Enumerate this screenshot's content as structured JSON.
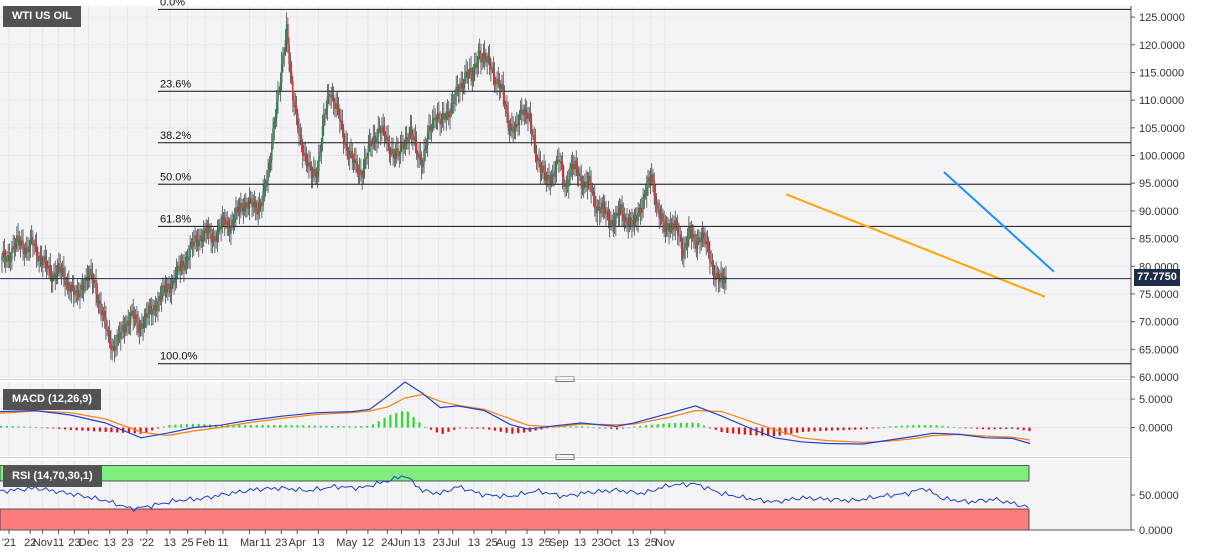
{
  "panels": {
    "main": {
      "label": "WTI US OIL",
      "last_price": "77.7750"
    },
    "macd": {
      "label": "MACD (12,26,9)"
    },
    "rsi": {
      "label": "RSI (14,70,30,1)"
    }
  },
  "colors": {
    "background": "#ffffff",
    "plot_bg": "#f4f4f6",
    "bull_candle": "#2e8b57",
    "bear_candle": "#d63a3a",
    "support_line": "#ffa500",
    "resistance_line": "#1e90ff",
    "macd_line": "#2040d0",
    "signal_line": "#ff7f0e",
    "hist_pos": "#33d633",
    "hist_neg": "#e01010",
    "rsi_line": "#2040d0",
    "rsi_overbought": "#7fee7f",
    "rsi_oversold": "#ff7c7c"
  },
  "chart_data": [
    {
      "type": "candlestick",
      "title": "WTI US OIL",
      "y_ticks": [
        "125.0000",
        "120.0000",
        "115.0000",
        "110.0000",
        "105.0000",
        "100.0000",
        "95.0000",
        "90.0000",
        "85.0000",
        "80.0000",
        "75.0000",
        "70.0000",
        "65.0000",
        "60.0000"
      ],
      "ylim": [
        60,
        127
      ],
      "x_ticks": [
        "'21",
        "22",
        "Nov",
        "11",
        "23",
        "Dec",
        "13",
        "23",
        "'22",
        "13",
        "25",
        "Feb",
        "11",
        "Mar",
        "11",
        "23",
        "Apr",
        "13",
        "May",
        "12",
        "24",
        "Jun",
        "13",
        "23",
        "Jul",
        "13",
        "25",
        "Aug",
        "13",
        "25",
        "Sep",
        "13",
        "23",
        "Oct",
        "13",
        "25",
        "Nov"
      ],
      "last_price": 77.775,
      "fibonacci_levels": [
        {
          "label": "0.0%",
          "value": 126.4
        },
        {
          "label": "23.6%",
          "value": 111.6
        },
        {
          "label": "38.2%",
          "value": 102.3
        },
        {
          "label": "50.0%",
          "value": 94.8
        },
        {
          "label": "61.8%",
          "value": 87.2
        },
        {
          "label": "100.0%",
          "value": 62.4
        }
      ],
      "close_path": [
        [
          0,
          81.0
        ],
        [
          5,
          82.0
        ],
        [
          10,
          83.5
        ],
        [
          15,
          84.5
        ],
        [
          20,
          83.0
        ],
        [
          25,
          84.0
        ],
        [
          30,
          82.0
        ],
        [
          35,
          80.0
        ],
        [
          40,
          78.5
        ],
        [
          45,
          79.5
        ],
        [
          50,
          78.0
        ],
        [
          55,
          76.5
        ],
        [
          60,
          74.0
        ],
        [
          65,
          77.0
        ],
        [
          70,
          78.0
        ],
        [
          75,
          77.0
        ],
        [
          80,
          72.0
        ],
        [
          85,
          68.0
        ],
        [
          90,
          65.5
        ],
        [
          95,
          67.0
        ],
        [
          100,
          70.0
        ],
        [
          105,
          71.0
        ],
        [
          110,
          69.0
        ],
        [
          115,
          70.5
        ],
        [
          120,
          71.5
        ],
        [
          125,
          73.5
        ],
        [
          130,
          75.0
        ],
        [
          135,
          76.5
        ],
        [
          140,
          78.0
        ],
        [
          145,
          80.0
        ],
        [
          150,
          82.0
        ],
        [
          155,
          84.0
        ],
        [
          160,
          85.5
        ],
        [
          165,
          86.0
        ],
        [
          170,
          85.0
        ],
        [
          175,
          86.5
        ],
        [
          180,
          88.0
        ],
        [
          185,
          87.5
        ],
        [
          190,
          89.5
        ],
        [
          195,
          91.5
        ],
        [
          200,
          91.0
        ],
        [
          205,
          90.5
        ],
        [
          210,
          92.0
        ],
        [
          215,
          96.0
        ],
        [
          220,
          107.0
        ],
        [
          225,
          113.0
        ],
        [
          230,
          123.5
        ],
        [
          235,
          110.0
        ],
        [
          240,
          104.0
        ],
        [
          245,
          100.0
        ],
        [
          250,
          96.0
        ],
        [
          255,
          98.0
        ],
        [
          260,
          106.0
        ],
        [
          265,
          112.0
        ],
        [
          270,
          109.0
        ],
        [
          275,
          104.0
        ],
        [
          280,
          101.0
        ],
        [
          285,
          98.0
        ],
        [
          290,
          97.0
        ],
        [
          295,
          100.0
        ],
        [
          300,
          103.0
        ],
        [
          305,
          105.0
        ],
        [
          310,
          103.0
        ],
        [
          315,
          101.0
        ],
        [
          320,
          99.5
        ],
        [
          325,
          103.0
        ],
        [
          330,
          104.0
        ],
        [
          335,
          101.0
        ],
        [
          340,
          99.0
        ],
        [
          345,
          104.0
        ],
        [
          350,
          108.0
        ],
        [
          355,
          105.5
        ],
        [
          360,
          108.0
        ],
        [
          365,
          110.0
        ],
        [
          370,
          112.0
        ],
        [
          375,
          115.5
        ],
        [
          380,
          113.5
        ],
        [
          385,
          119.0
        ],
        [
          390,
          117.0
        ],
        [
          395,
          116.5
        ],
        [
          400,
          113.0
        ],
        [
          405,
          111.0
        ],
        [
          410,
          105.5
        ],
        [
          415,
          104.0
        ],
        [
          420,
          109.0
        ],
        [
          425,
          107.0
        ],
        [
          430,
          102.0
        ],
        [
          435,
          98.0
        ],
        [
          440,
          95.0
        ],
        [
          445,
          97.0
        ],
        [
          450,
          99.0
        ],
        [
          455,
          94.5
        ],
        [
          460,
          98.0
        ],
        [
          465,
          97.0
        ],
        [
          470,
          95.0
        ],
        [
          475,
          94.5
        ],
        [
          480,
          91.0
        ],
        [
          485,
          90.0
        ],
        [
          490,
          89.0
        ],
        [
          495,
          88.0
        ],
        [
          500,
          90.0
        ],
        [
          505,
          88.5
        ],
        [
          510,
          87.0
        ],
        [
          515,
          90.5
        ],
        [
          520,
          93.0
        ],
        [
          525,
          96.5
        ],
        [
          530,
          90.0
        ],
        [
          535,
          86.5
        ],
        [
          540,
          88.0
        ],
        [
          545,
          86.5
        ],
        [
          550,
          83.0
        ],
        [
          555,
          86.0
        ],
        [
          560,
          84.0
        ],
        [
          565,
          86.0
        ],
        [
          570,
          83.0
        ],
        [
          575,
          79.5
        ],
        [
          580,
          77.0
        ],
        [
          585,
          77.775
        ]
      ],
      "support_trendline": {
        "from": [
          0.0,
          93.0
        ],
        "to": [
          1.0,
          74.5
        ],
        "label": ""
      },
      "resistance_trendline": {
        "from": [
          0.0,
          97.0
        ],
        "to": [
          1.0,
          79.0
        ],
        "label": ""
      }
    },
    {
      "type": "macd",
      "title": "MACD (12,26,9)",
      "y_ticks": [
        "5.0000",
        "0.0000"
      ],
      "ylim": [
        -5,
        8
      ],
      "macd_line": [
        [
          0,
          2.8
        ],
        [
          20,
          3.0
        ],
        [
          40,
          2.2
        ],
        [
          60,
          0.8
        ],
        [
          80,
          -1.8
        ],
        [
          95,
          -1.0
        ],
        [
          110,
          0.0
        ],
        [
          125,
          0.4
        ],
        [
          140,
          1.2
        ],
        [
          160,
          2.0
        ],
        [
          180,
          2.6
        ],
        [
          200,
          2.8
        ],
        [
          210,
          3.2
        ],
        [
          220,
          5.5
        ],
        [
          230,
          8.0
        ],
        [
          240,
          6.0
        ],
        [
          250,
          3.5
        ],
        [
          260,
          3.8
        ],
        [
          275,
          3.0
        ],
        [
          290,
          0.5
        ],
        [
          300,
          -0.3
        ],
        [
          315,
          0.3
        ],
        [
          330,
          0.8
        ],
        [
          350,
          0.2
        ],
        [
          360,
          0.8
        ],
        [
          380,
          2.5
        ],
        [
          395,
          3.8
        ],
        [
          410,
          2.0
        ],
        [
          425,
          0.0
        ],
        [
          440,
          -1.8
        ],
        [
          455,
          -2.5
        ],
        [
          470,
          -2.8
        ],
        [
          490,
          -2.9
        ],
        [
          505,
          -2.2
        ],
        [
          520,
          -1.5
        ],
        [
          530,
          -1.0
        ],
        [
          545,
          -1.2
        ],
        [
          560,
          -1.8
        ],
        [
          575,
          -1.9
        ],
        [
          585,
          -2.8
        ]
      ],
      "signal_line": [
        [
          0,
          2.5
        ],
        [
          20,
          2.9
        ],
        [
          40,
          2.6
        ],
        [
          60,
          1.5
        ],
        [
          80,
          -0.8
        ],
        [
          95,
          -1.4
        ],
        [
          110,
          -0.6
        ],
        [
          125,
          0.0
        ],
        [
          140,
          0.8
        ],
        [
          160,
          1.6
        ],
        [
          180,
          2.3
        ],
        [
          200,
          2.6
        ],
        [
          210,
          2.9
        ],
        [
          220,
          3.6
        ],
        [
          230,
          5.2
        ],
        [
          240,
          5.8
        ],
        [
          250,
          4.6
        ],
        [
          260,
          3.9
        ],
        [
          275,
          3.2
        ],
        [
          290,
          1.5
        ],
        [
          300,
          0.4
        ],
        [
          315,
          0.1
        ],
        [
          330,
          0.6
        ],
        [
          350,
          0.5
        ],
        [
          360,
          0.6
        ],
        [
          380,
          1.8
        ],
        [
          395,
          3.0
        ],
        [
          410,
          2.8
        ],
        [
          425,
          1.2
        ],
        [
          440,
          -0.4
        ],
        [
          455,
          -1.8
        ],
        [
          470,
          -2.3
        ],
        [
          490,
          -2.6
        ],
        [
          505,
          -2.4
        ],
        [
          520,
          -1.9
        ],
        [
          530,
          -1.4
        ],
        [
          545,
          -1.2
        ],
        [
          560,
          -1.5
        ],
        [
          575,
          -1.7
        ],
        [
          585,
          -2.2
        ]
      ]
    },
    {
      "type": "line",
      "title": "RSI (14,70,30,1)",
      "y_ticks": [
        "50.0000",
        "0.0000"
      ],
      "ylim": [
        0,
        100
      ],
      "overbought": 70,
      "oversold": 30,
      "rsi": [
        [
          0,
          55
        ],
        [
          20,
          60
        ],
        [
          40,
          52
        ],
        [
          60,
          42
        ],
        [
          75,
          30
        ],
        [
          85,
          34
        ],
        [
          100,
          42
        ],
        [
          115,
          45
        ],
        [
          130,
          52
        ],
        [
          145,
          58
        ],
        [
          160,
          60
        ],
        [
          175,
          56
        ],
        [
          190,
          62
        ],
        [
          205,
          60
        ],
        [
          220,
          70
        ],
        [
          230,
          78
        ],
        [
          240,
          56
        ],
        [
          250,
          52
        ],
        [
          260,
          62
        ],
        [
          275,
          50
        ],
        [
          290,
          48
        ],
        [
          305,
          56
        ],
        [
          320,
          48
        ],
        [
          335,
          54
        ],
        [
          350,
          57
        ],
        [
          365,
          52
        ],
        [
          380,
          64
        ],
        [
          395,
          66
        ],
        [
          410,
          52
        ],
        [
          425,
          45
        ],
        [
          440,
          40
        ],
        [
          455,
          46
        ],
        [
          470,
          44
        ],
        [
          485,
          42
        ],
        [
          500,
          48
        ],
        [
          515,
          52
        ],
        [
          525,
          60
        ],
        [
          535,
          45
        ],
        [
          550,
          40
        ],
        [
          565,
          44
        ],
        [
          575,
          38
        ],
        [
          585,
          32
        ]
      ]
    }
  ]
}
